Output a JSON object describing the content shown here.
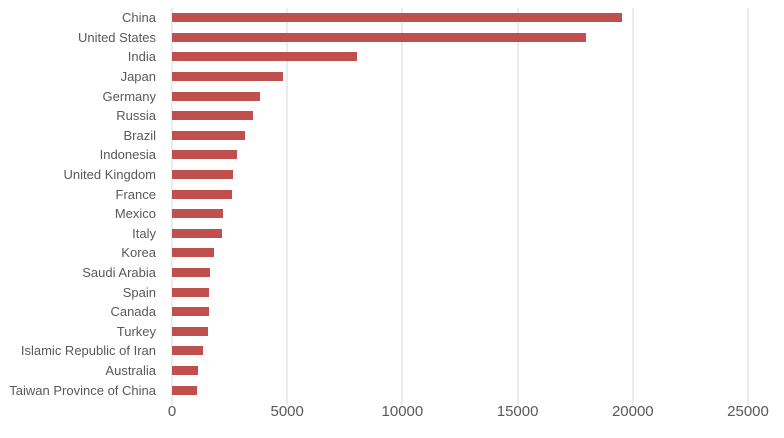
{
  "chart_data": {
    "type": "bar",
    "orientation": "horizontal",
    "title": "",
    "xlabel": "",
    "ylabel": "",
    "xlim": [
      0,
      25000
    ],
    "grid": true,
    "legend": false,
    "x_ticks": [
      0,
      5000,
      10000,
      15000,
      20000,
      25000
    ],
    "x_tick_labels": [
      "0",
      "5000",
      "10000",
      "15000",
      "20000",
      "25000"
    ],
    "categories": [
      "China",
      "United States",
      "India",
      "Japan",
      "Germany",
      "Russia",
      "Brazil",
      "Indonesia",
      "United Kingdom",
      "France",
      "Mexico",
      "Italy",
      "Korea",
      "Saudi Arabia",
      "Spain",
      "Canada",
      "Turkey",
      "Islamic Republic of Iran",
      "Australia",
      "Taiwan Province of China"
    ],
    "values": [
      19520,
      17950,
      8040,
      4820,
      3820,
      3525,
      3165,
      2835,
      2645,
      2590,
      2225,
      2170,
      1820,
      1650,
      1620,
      1620,
      1575,
      1345,
      1125,
      1085
    ],
    "colors": {
      "bar": "#C0504D",
      "gridline": "#D9D9D9",
      "label_text": "#595959",
      "background": "#FFFFFF"
    }
  }
}
